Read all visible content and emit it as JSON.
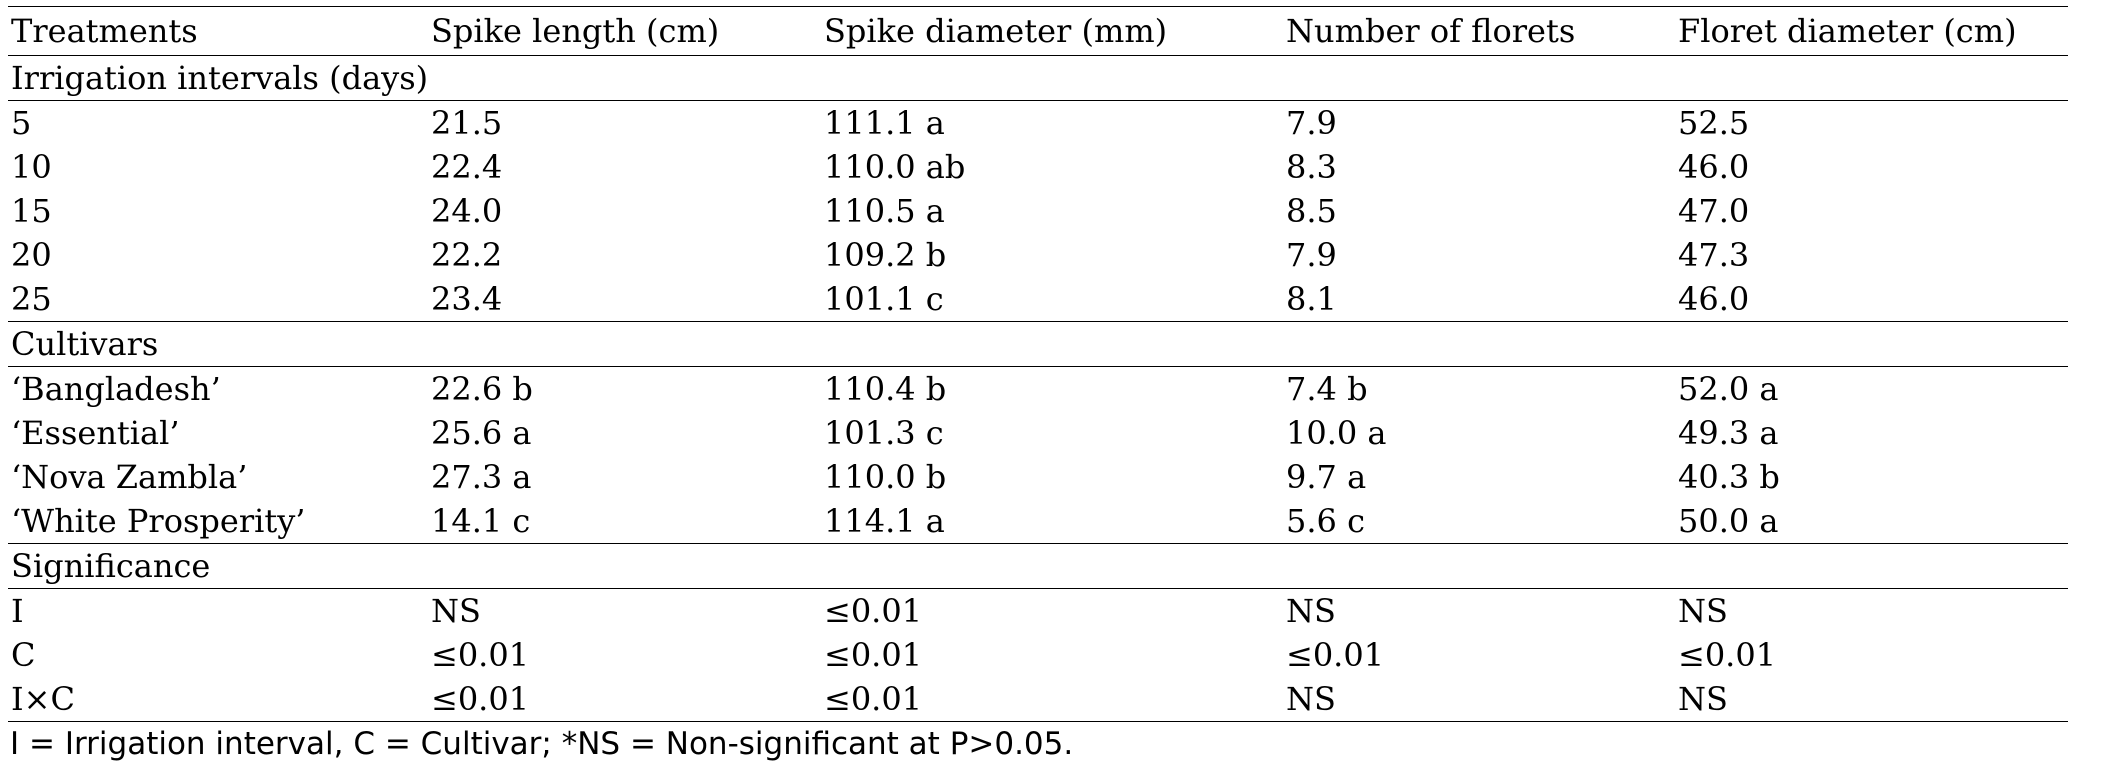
{
  "table": {
    "columns": [
      "Treatments",
      "Spike length (cm)",
      "Spike diameter (mm)",
      "Number of florets",
      "Floret diameter (cm)"
    ],
    "sections": [
      {
        "title": "Irrigation intervals (days)",
        "rows": [
          [
            "5",
            "21.5",
            "111.1 a",
            "7.9",
            "52.5"
          ],
          [
            "10",
            "22.4",
            "110.0 ab",
            "8.3",
            "46.0"
          ],
          [
            "15",
            "24.0",
            "110.5 a",
            "8.5",
            "47.0"
          ],
          [
            "20",
            "22.2",
            "109.2 b",
            "7.9",
            "47.3"
          ],
          [
            "25",
            "23.4",
            "101.1 c",
            "8.1",
            "46.0"
          ]
        ]
      },
      {
        "title": "Cultivars",
        "rows": [
          [
            "‘Bangladesh’",
            "22.6 b",
            "110.4 b",
            "7.4 b",
            "52.0 a"
          ],
          [
            "‘Essential’",
            "25.6 a",
            "101.3 c",
            "10.0 a",
            "49.3 a"
          ],
          [
            "‘Nova Zambla’",
            "27.3 a",
            "110.0 b",
            "9.7 a",
            "40.3 b"
          ],
          [
            "‘White Prosperity’",
            "14.1 c",
            "114.1 a",
            "5.6 c",
            "50.0 a"
          ]
        ]
      },
      {
        "title": "Significance",
        "rows": [
          [
            "I",
            "NS",
            "≤0.01",
            "NS",
            "NS"
          ],
          [
            "C",
            "≤0.01",
            "≤0.01",
            "≤0.01",
            "≤0.01"
          ],
          [
            "I×C",
            "≤0.01",
            "≤0.01",
            "NS",
            "NS"
          ]
        ]
      }
    ],
    "footnote": "I = Irrigation interval, C = Cultivar; *NS = Non-significant at P>0.05."
  }
}
